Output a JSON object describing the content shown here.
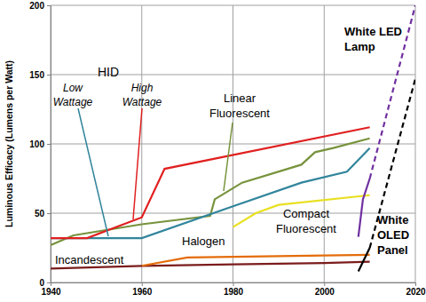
{
  "chart_data": {
    "type": "line",
    "y_label": "Luminous Efficacy (Lumens per Watt)",
    "xlim": [
      1940,
      2020
    ],
    "xticks": [
      1940,
      1960,
      1980,
      2000,
      2020
    ],
    "ylim": [
      0,
      200
    ],
    "yticks": [
      0,
      50,
      100,
      150,
      200
    ],
    "grid": true,
    "annotations": [
      "HID"
    ],
    "series": [
      {
        "name": "Incandescent",
        "color": "#7b1c1c",
        "line_style": "solid",
        "x": [
          1940,
          1960,
          1980,
          2000,
          2010
        ],
        "values": [
          10,
          12,
          13,
          14,
          15
        ]
      },
      {
        "name": "Halogen",
        "color": "#e46c0a",
        "line_style": "solid",
        "x": [
          1960,
          1970,
          2010
        ],
        "values": [
          12,
          18,
          20
        ]
      },
      {
        "name": "Compact Fluorescent",
        "color": "#e8e020",
        "line_style": "solid",
        "x": [
          1980,
          1985,
          1990,
          2010
        ],
        "values": [
          40,
          50,
          56,
          63
        ]
      },
      {
        "name": "Linear Fluorescent",
        "color": "#77933c",
        "line_style": "solid",
        "x": [
          1940,
          1945,
          1960,
          1975,
          1976,
          1982,
          1995,
          1998,
          2002,
          2010
        ],
        "values": [
          27,
          34,
          42,
          48,
          60,
          72,
          85,
          94,
          97,
          104
        ]
      },
      {
        "name": "Low Wattage",
        "color": "#31859c",
        "line_style": "solid",
        "x": [
          1940,
          1960,
          1980,
          1995,
          2005,
          2010
        ],
        "values": [
          32,
          32,
          55,
          72,
          80,
          97
        ]
      },
      {
        "name": "High Wattage",
        "color": "#e02020",
        "line_style": "solid",
        "x": [
          1940,
          1948,
          1960,
          1965,
          2010
        ],
        "values": [
          32,
          32,
          47,
          82,
          112
        ]
      },
      {
        "name": "White LED Lamp",
        "color": "#7030a0",
        "line_style": "solid",
        "x": [
          2007.5,
          2008.5,
          2010
        ],
        "values": [
          33,
          60,
          75
        ]
      },
      {
        "color": "#7030a0",
        "line_style": "dashed",
        "x": [
          2010,
          2020
        ],
        "values": [
          75,
          200
        ]
      },
      {
        "name": "White OLED Panel",
        "color": "#000000",
        "line_style": "solid",
        "x": [
          2007.5,
          2010
        ],
        "values": [
          8,
          25
        ]
      },
      {
        "color": "#000000",
        "line_style": "dashed",
        "x": [
          2010,
          2020
        ],
        "values": [
          25,
          147
        ]
      }
    ]
  }
}
